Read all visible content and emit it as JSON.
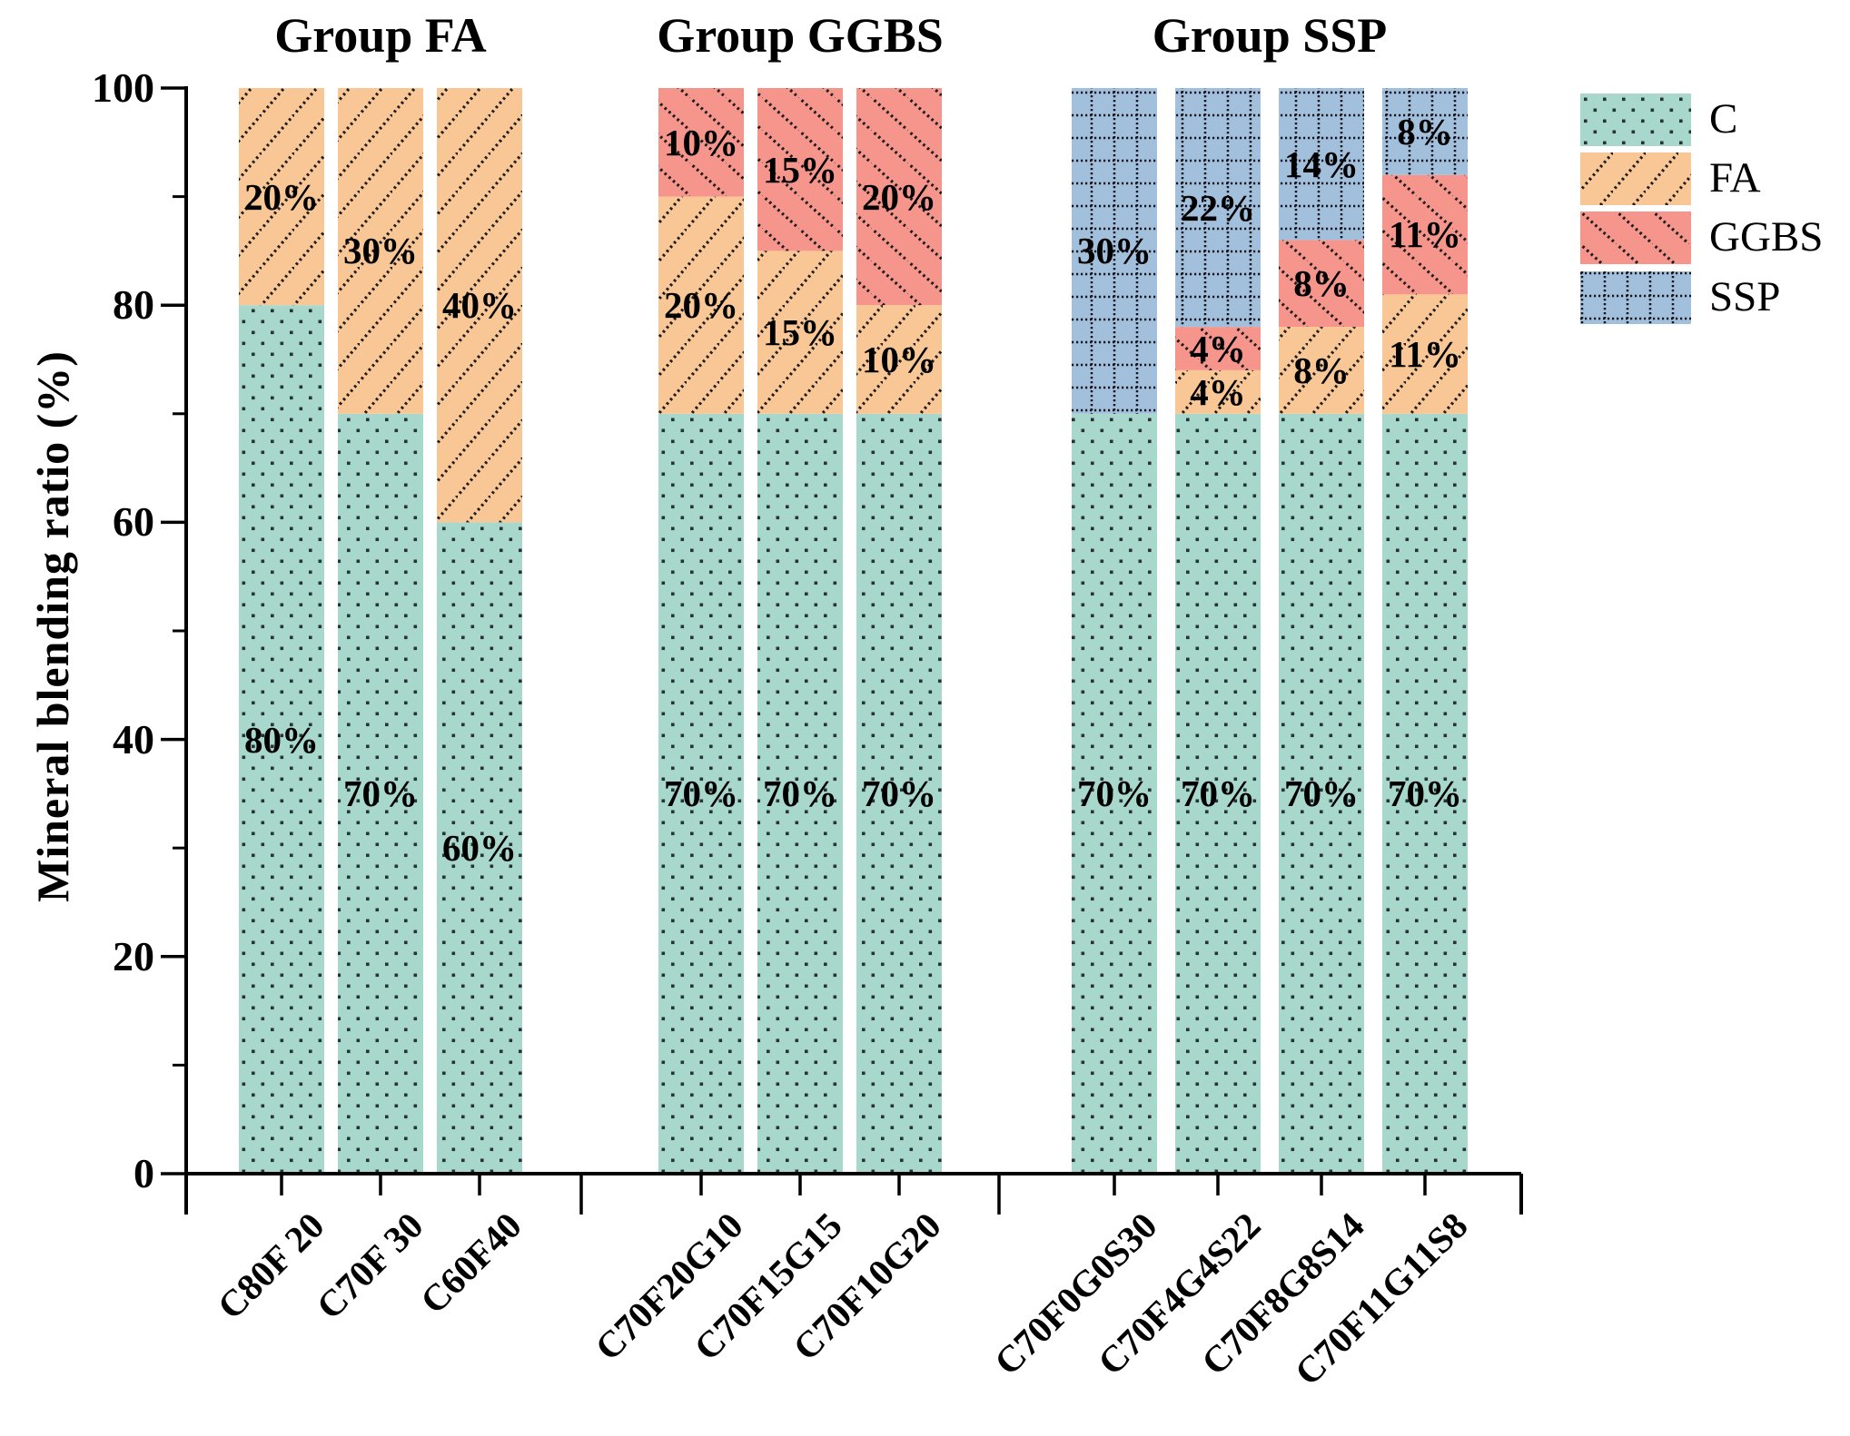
{
  "chart_data": {
    "type": "bar",
    "stacked": true,
    "ylabel": "Mineral blending ratio (%)",
    "ylim": [
      0,
      100
    ],
    "yticks": [
      0,
      20,
      40,
      60,
      80,
      100
    ],
    "y_minor_ticks": [
      10,
      30,
      50,
      70,
      90
    ],
    "value_label_format": "{value}%",
    "grid": false,
    "legend_position": "top-right",
    "series": [
      {
        "key": "C",
        "label": "C",
        "color": "#a8d8cc",
        "pattern": "dots",
        "dot_color": "#263238"
      },
      {
        "key": "FA",
        "label": "FA",
        "color": "#f9c795",
        "pattern": "diagonal-up",
        "line_color": "#1c1c1c"
      },
      {
        "key": "GGBS",
        "label": "GGBS",
        "color": "#f6958c",
        "pattern": "diagonal-down",
        "line_color": "#1c1c1c"
      },
      {
        "key": "SSP",
        "label": "SSP",
        "color": "#a2bfdc",
        "pattern": "dotted-grid",
        "line_color": "#14141c"
      }
    ],
    "groups": [
      {
        "title": "Group FA",
        "bars": [
          {
            "category": "C80F 20",
            "segments": [
              {
                "series": "C",
                "value": 80
              },
              {
                "series": "FA",
                "value": 20
              }
            ]
          },
          {
            "category": "C70F 30",
            "segments": [
              {
                "series": "C",
                "value": 70
              },
              {
                "series": "FA",
                "value": 30
              }
            ]
          },
          {
            "category": "C60F40",
            "segments": [
              {
                "series": "C",
                "value": 60
              },
              {
                "series": "FA",
                "value": 40
              }
            ]
          }
        ]
      },
      {
        "title": "Group GGBS",
        "bars": [
          {
            "category": "C70F20G10",
            "segments": [
              {
                "series": "C",
                "value": 70
              },
              {
                "series": "FA",
                "value": 20
              },
              {
                "series": "GGBS",
                "value": 10
              }
            ]
          },
          {
            "category": "C70F15G15",
            "segments": [
              {
                "series": "C",
                "value": 70
              },
              {
                "series": "FA",
                "value": 15
              },
              {
                "series": "GGBS",
                "value": 15
              }
            ]
          },
          {
            "category": "C70F10G20",
            "segments": [
              {
                "series": "C",
                "value": 70
              },
              {
                "series": "FA",
                "value": 10
              },
              {
                "series": "GGBS",
                "value": 20
              }
            ]
          }
        ]
      },
      {
        "title": "Group SSP",
        "bars": [
          {
            "category": "C70F0G0S30",
            "segments": [
              {
                "series": "C",
                "value": 70
              },
              {
                "series": "SSP",
                "value": 30
              }
            ]
          },
          {
            "category": "C70F4G4S22",
            "segments": [
              {
                "series": "C",
                "value": 70
              },
              {
                "series": "FA",
                "value": 4
              },
              {
                "series": "GGBS",
                "value": 4
              },
              {
                "series": "SSP",
                "value": 22
              }
            ]
          },
          {
            "category": "C70F8G8S14",
            "segments": [
              {
                "series": "C",
                "value": 70
              },
              {
                "series": "FA",
                "value": 8
              },
              {
                "series": "GGBS",
                "value": 8
              },
              {
                "series": "SSP",
                "value": 14
              }
            ]
          },
          {
            "category": "C70F11G11S8",
            "segments": [
              {
                "series": "C",
                "value": 70
              },
              {
                "series": "FA",
                "value": 11
              },
              {
                "series": "GGBS",
                "value": 11
              },
              {
                "series": "SSP",
                "value": 8
              }
            ]
          }
        ]
      }
    ],
    "legend": [
      "C",
      "FA",
      "GGBS",
      "SSP"
    ],
    "axis_color": "#000000"
  }
}
